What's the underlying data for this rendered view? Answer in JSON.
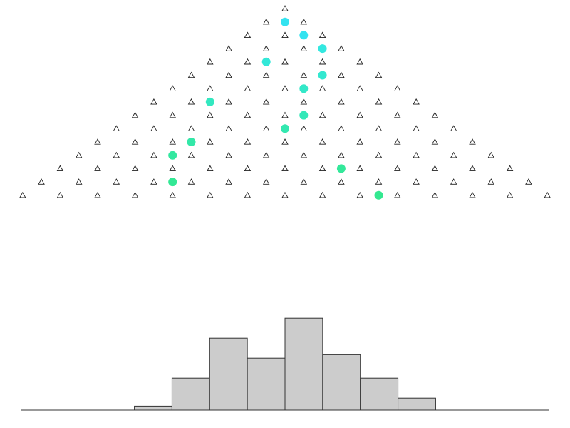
{
  "chart_data": {
    "type": "bar",
    "title": "",
    "xlabel": "",
    "ylabel": "",
    "board": {
      "rows": 15,
      "peg_symbol": "triangle-outline"
    },
    "balls": [
      {
        "row": 1,
        "slot": 0.0,
        "color": "#33e3f0"
      },
      {
        "row": 2,
        "slot": 0.5,
        "color": "#33e3f0"
      },
      {
        "row": 3,
        "slot": 1.0,
        "color": "#33e8e0"
      },
      {
        "row": 4,
        "slot": -0.5,
        "color": "#33e8d8"
      },
      {
        "row": 5,
        "slot": 1.0,
        "color": "#33e8d0"
      },
      {
        "row": 6,
        "slot": 0.5,
        "color": "#33e8c8"
      },
      {
        "row": 7,
        "slot": -2.0,
        "color": "#33e8c0"
      },
      {
        "row": 8,
        "slot": 0.5,
        "color": "#33e8b8"
      },
      {
        "row": 9,
        "slot": 0.0,
        "color": "#33e8b0"
      },
      {
        "row": 10,
        "slot": -2.5,
        "color": "#33e8a8"
      },
      {
        "row": 11,
        "slot": -3.0,
        "color": "#33e8a0"
      },
      {
        "row": 12,
        "slot": 1.5,
        "color": "#33e89a"
      },
      {
        "row": 13,
        "slot": -3.0,
        "color": "#33e895"
      },
      {
        "row": 14,
        "slot": 2.5,
        "color": "#33e890"
      }
    ],
    "bins": 14,
    "values": [
      0,
      0,
      0,
      0.04,
      0.32,
      0.72,
      0.52,
      0.92,
      0.56,
      0.32,
      0.12,
      0,
      0,
      0
    ],
    "bar_color": "#cccccc",
    "bar_edge_color": "#333333",
    "ylim": [
      0,
      1
    ]
  }
}
